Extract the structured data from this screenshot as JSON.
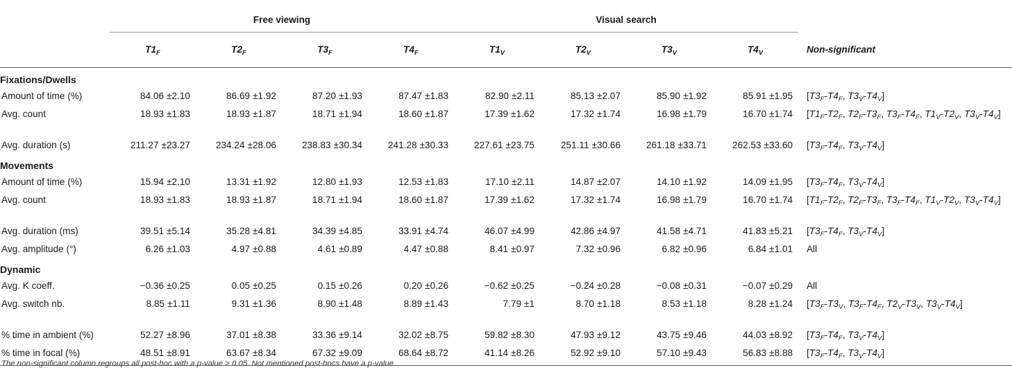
{
  "header": {
    "group_free": "Free viewing",
    "group_visual": "Visual search",
    "cols": [
      {
        "main": "T1",
        "sub": "F"
      },
      {
        "main": "T2",
        "sub": "F"
      },
      {
        "main": "T3",
        "sub": "F"
      },
      {
        "main": "T4",
        "sub": "F"
      },
      {
        "main": "T1",
        "sub": "V"
      },
      {
        "main": "T2",
        "sub": "V"
      },
      {
        "main": "T3",
        "sub": "V"
      },
      {
        "main": "T4",
        "sub": "V"
      }
    ],
    "nonsig": "Non-significant"
  },
  "sections": [
    {
      "title": "Fixations/Dwells",
      "rows": [
        {
          "label": "Amount of time (%)",
          "cells": [
            [
              "84.06",
              "±2.10"
            ],
            [
              "86.69",
              "±1.92"
            ],
            [
              "87.20",
              "±1.93"
            ],
            [
              "87.47",
              "±1.83"
            ],
            [
              "82.90",
              "±2.11"
            ],
            [
              "85.13",
              "±2.07"
            ],
            [
              "85.90",
              "±1.92"
            ],
            [
              "85.91",
              "±1.95"
            ]
          ],
          "ns": "[T3F-T4F, T3V-T4V]"
        },
        {
          "label": "Avg. count",
          "cells": [
            [
              "18.93",
              "±1.83"
            ],
            [
              "18.93",
              "±1.87"
            ],
            [
              "18.71",
              "±1.94"
            ],
            [
              "18.60",
              "±1.87"
            ],
            [
              "17.39",
              "±1.62"
            ],
            [
              "17.32",
              "±1.74"
            ],
            [
              "16.98",
              "±1.79"
            ],
            [
              "16.70",
              "±1.74"
            ]
          ],
          "ns": "[T1F-T2F, T2F-T3F, T3F-T4F, T1V-T2V, T3V-T4V]"
        },
        {
          "label": "Avg. duration (s)",
          "cells": [
            [
              "211.27",
              "±23.27"
            ],
            [
              "234.24",
              "±28.06"
            ],
            [
              "238.83",
              "±30.34"
            ],
            [
              "241.28",
              "±30.33"
            ],
            [
              "227.61",
              "±23.75"
            ],
            [
              "251.11",
              "±30.66"
            ],
            [
              "261.18",
              "±33.71"
            ],
            [
              "262.53",
              "±33.60"
            ]
          ],
          "ns": "[T3F-T4F, T3V-T4V]"
        }
      ]
    },
    {
      "title": "Movements",
      "rows": [
        {
          "label": "Amount of time (%)",
          "cells": [
            [
              "15.94",
              "±2.10"
            ],
            [
              "13.31",
              "±1.92"
            ],
            [
              "12.80",
              "±1.93"
            ],
            [
              "12.53",
              "±1.83"
            ],
            [
              "17.10",
              "±2.11"
            ],
            [
              "14.87",
              "±2.07"
            ],
            [
              "14.10",
              "±1.92"
            ],
            [
              "14.09",
              "±1.95"
            ]
          ],
          "ns": "[T3F-T4F, T3V-T4V]"
        },
        {
          "label": "Avg. count",
          "cells": [
            [
              "18.93",
              "±1.83"
            ],
            [
              "18.93",
              "±1.87"
            ],
            [
              "18.71",
              "±1.94"
            ],
            [
              "18.60",
              "±1.87"
            ],
            [
              "17.39",
              "±1.62"
            ],
            [
              "17.32",
              "±1.74"
            ],
            [
              "16.98",
              "±1.79"
            ],
            [
              "16.70",
              "±1.74"
            ]
          ],
          "ns": "[T1F-T2F, T2F-T3F, T3F-T4F, T1V-T2V, T3V-T4V]"
        },
        {
          "label": "Avg. duration (ms)",
          "cells": [
            [
              "39.51",
              "±5.14"
            ],
            [
              "35.28",
              "±4.81"
            ],
            [
              "34.39",
              "±4.85"
            ],
            [
              "33.91",
              "±4.74"
            ],
            [
              "46.07",
              "±4.99"
            ],
            [
              "42.86",
              "±4.97"
            ],
            [
              "41.58",
              "±4.71"
            ],
            [
              "41.83",
              "±5.21"
            ]
          ],
          "ns": "[T3F-T4F, T3V-T4V]"
        },
        {
          "label": "Avg. amplitude (°)",
          "cells": [
            [
              "6.26",
              "±1.03"
            ],
            [
              "4.97",
              "±0.88"
            ],
            [
              "4.61",
              "±0.89"
            ],
            [
              "4.47",
              "±0.88"
            ],
            [
              "8.41",
              "±0.97"
            ],
            [
              "7.32",
              "±0.96"
            ],
            [
              "6.82",
              "±0.96"
            ],
            [
              "6.84",
              "±1.01"
            ]
          ],
          "ns": "All"
        }
      ]
    },
    {
      "title": "Dynamic",
      "rows": [
        {
          "label": "Avg. K coeff.",
          "cells": [
            [
              "−0.36",
              "±0.25"
            ],
            [
              "0.05",
              "±0.25"
            ],
            [
              "0.15",
              "±0.26"
            ],
            [
              "0.20",
              "±0.26"
            ],
            [
              "−0.62",
              "±0.25"
            ],
            [
              "−0.24",
              "±0.28"
            ],
            [
              "−0.08",
              "±0.31"
            ],
            [
              "−0.07",
              "±0.29"
            ]
          ],
          "ns": "All"
        },
        {
          "label": "Avg. switch nb.",
          "cells": [
            [
              "8.85",
              "±1.11"
            ],
            [
              "9.31",
              "±1.36"
            ],
            [
              "8.90",
              "±1.48"
            ],
            [
              "8.89",
              "±1.43"
            ],
            [
              "7.79",
              "±1"
            ],
            [
              "8.70",
              "±1.18"
            ],
            [
              "8.53",
              "±1.18"
            ],
            [
              "8.28",
              "±1.24"
            ]
          ],
          "ns": "[T3F-T3V, T3F-T4F, T2V-T3V, T3V-T4V]"
        },
        {
          "label": "% time in ambient (%)",
          "cells": [
            [
              "52.27",
              "±8.96"
            ],
            [
              "37.01",
              "±8.38"
            ],
            [
              "33.36",
              "±9.14"
            ],
            [
              "32.02",
              "±8.75"
            ],
            [
              "59.82",
              "±8.30"
            ],
            [
              "47.93",
              "±9.12"
            ],
            [
              "43.75",
              "±9.46"
            ],
            [
              "44.03",
              "±8.92"
            ]
          ],
          "ns": "[T3F-T4F, T3V-T4V]"
        },
        {
          "label": "% time in focal (%)",
          "cells": [
            [
              "48.51",
              "±8.91"
            ],
            [
              "63.67",
              "±8.34"
            ],
            [
              "67.32",
              "±9.09"
            ],
            [
              "68.64",
              "±8.72"
            ],
            [
              "41.14",
              "±8.26"
            ],
            [
              "52.92",
              "±9.10"
            ],
            [
              "57.10",
              "±9.43"
            ],
            [
              "56.83",
              "±8.88"
            ]
          ],
          "ns": "[T3F-T4F, T3V-T4V]"
        }
      ]
    }
  ],
  "footnote": "The non-significant column regroups all post-hoc with a p-value > 0.05. Not mentioned post-hocs have a p-value."
}
